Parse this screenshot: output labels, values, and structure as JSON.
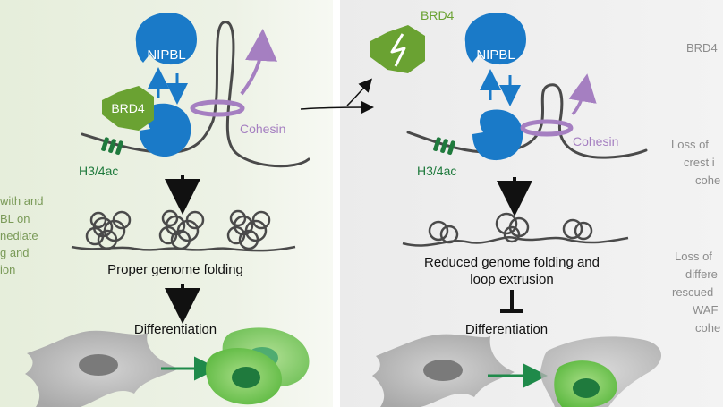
{
  "left_panel": {
    "side_text": [
      "with and",
      "BL on",
      "nediate",
      "g and",
      "ion"
    ],
    "brd4_label": "BRD4",
    "nipbl_label": "NIPBL",
    "cohesin_label": "Cohesin",
    "mark_label": "H3/4ac",
    "folding_label": "Proper genome folding",
    "differentiation_label": "Differentiation"
  },
  "right_panel": {
    "brd4_label": "BRD4",
    "nipbl_label": "NIPBL",
    "cohesin_label": "Cohesin",
    "mark_label": "H3/4ac",
    "folding_line1": "Reduced genome folding and",
    "folding_line2": "loop extrusion",
    "differentiation_label": "Differentiation",
    "side_text": [
      "BRD4",
      "Loss of",
      "crest i",
      "cohe",
      "Loss of",
      "differe",
      "rescued",
      "WAF",
      "cohe"
    ]
  },
  "colors": {
    "brd4_green": "#6aa232",
    "nipbl_blue": "#1a7ac8",
    "cohesin_purple": "#a57fc1",
    "mark_green": "#1f7a3d",
    "dna_gray": "#4a4a4a",
    "left_bg": "#e3ead8",
    "right_bg": "#ececec"
  }
}
